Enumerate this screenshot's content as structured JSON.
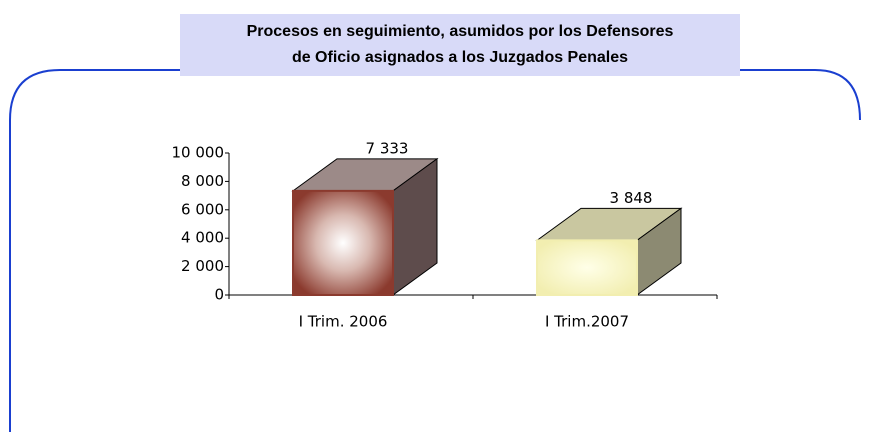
{
  "chart_data": {
    "type": "bar3d",
    "title_lines": [
      "Procesos en seguimiento, asumidos por los Defensores",
      "de Oficio asignados a los Juzgados Penales"
    ],
    "categories": [
      "I Trim. 2006",
      "I Trim.2007"
    ],
    "values": [
      7333,
      3848
    ],
    "value_labels": [
      "7 333",
      "3 848"
    ],
    "colors": [
      "#8b3a2e",
      "#f2eeb0"
    ],
    "ylim": [
      0,
      10000
    ],
    "yticks": [
      0,
      {
        "value": 2000,
        "label": "2 000"
      },
      {
        "value": 4000,
        "label": "4 000"
      },
      {
        "value": 6000,
        "label": "6 000"
      },
      {
        "value": 8000,
        "label": "8 000"
      },
      {
        "value": 10000,
        "label": "10 000"
      }
    ]
  }
}
